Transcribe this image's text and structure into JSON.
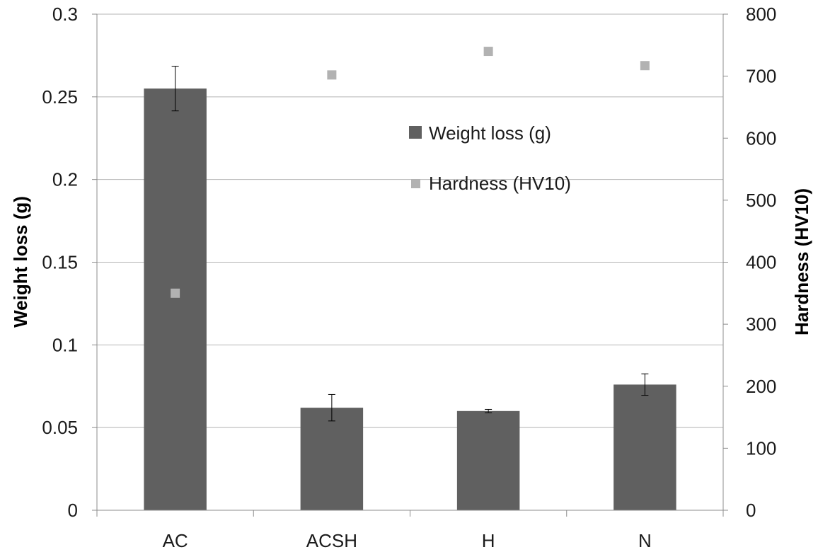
{
  "chart_data": {
    "type": "bar",
    "categories": [
      "AC",
      "ACSH",
      "H",
      "N"
    ],
    "series": [
      {
        "name": "Weight loss (g)",
        "kind": "bar",
        "axis": "left",
        "color": "#606060",
        "values": [
          0.255,
          0.062,
          0.06,
          0.076
        ],
        "error": [
          0.0135,
          0.008,
          0.001,
          0.0065
        ]
      },
      {
        "name": "Hardness (HV10)",
        "kind": "scatter",
        "axis": "right",
        "color": "#b2b2b2",
        "values": [
          350,
          702,
          740,
          717
        ]
      }
    ],
    "ylabel": "Weight loss (g)",
    "ylim": [
      0,
      0.3
    ],
    "yticks": [
      "0",
      "0.05",
      "0.1",
      "0.15",
      "0.2",
      "0.25",
      "0.3"
    ],
    "ylabel_right": "Hardness (HV10)",
    "ylim_right": [
      0,
      800
    ],
    "yticks_right": [
      "0",
      "100",
      "200",
      "300",
      "400",
      "500",
      "600",
      "700",
      "800"
    ],
    "grid": true,
    "legend_position": "top-center"
  }
}
